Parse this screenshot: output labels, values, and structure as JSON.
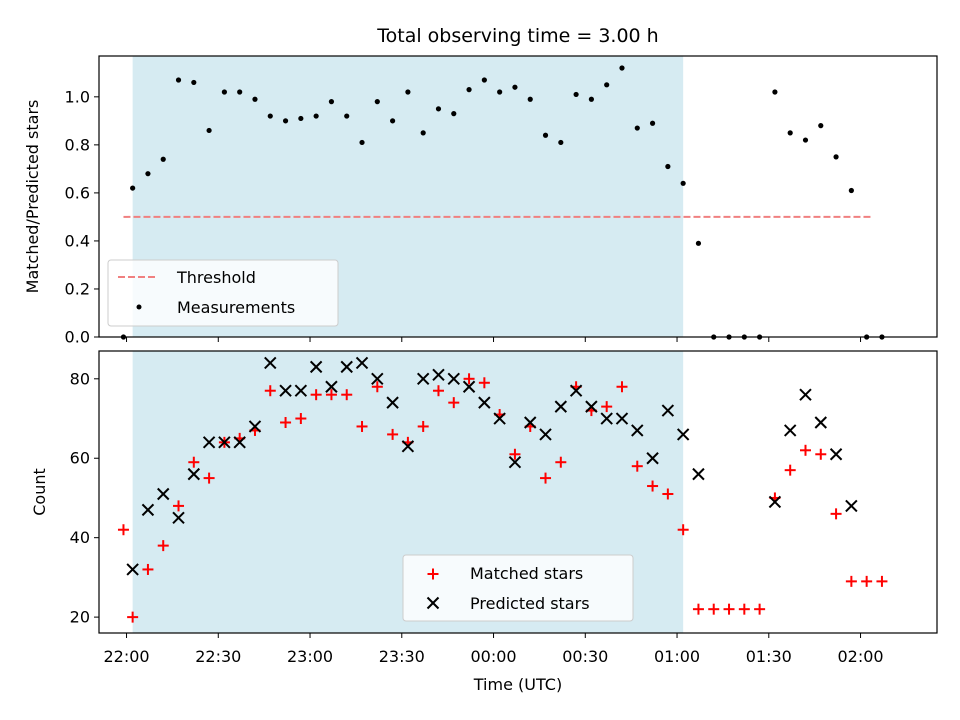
{
  "chart_data": [
    {
      "type": "scatter",
      "title": "Total observing time = 3.00 h",
      "xlabel": "",
      "ylabel": "Matched/Predicted stars",
      "ylim": [
        0,
        1.17
      ],
      "yticks": [
        "0.0",
        "0.2",
        "0.4",
        "0.6",
        "0.8",
        "1.0"
      ],
      "xlim": [
        "21:51",
        "02:25"
      ],
      "highlight_span": {
        "start": "22:02",
        "end": "01:02",
        "color": "#add8e6"
      },
      "colors": {
        "highlight": "#add8e6",
        "threshold": "#f08080",
        "measurements": "#000000"
      },
      "series": [
        {
          "name": "Threshold",
          "style": "dashed-line",
          "color": "#f08080",
          "x": [
            "21:59",
            "02:04"
          ],
          "y": [
            0.5,
            0.5
          ]
        },
        {
          "name": "Measurements",
          "style": "dot",
          "color": "#000000",
          "points": [
            [
              "21:59",
              0.0
            ],
            [
              "22:02",
              0.62
            ],
            [
              "22:07",
              0.68
            ],
            [
              "22:12",
              0.74
            ],
            [
              "22:17",
              1.07
            ],
            [
              "22:22",
              1.06
            ],
            [
              "22:27",
              0.86
            ],
            [
              "22:32",
              1.02
            ],
            [
              "22:37",
              1.02
            ],
            [
              "22:42",
              0.99
            ],
            [
              "22:47",
              0.92
            ],
            [
              "22:52",
              0.9
            ],
            [
              "22:57",
              0.91
            ],
            [
              "23:02",
              0.92
            ],
            [
              "23:07",
              0.98
            ],
            [
              "23:12",
              0.92
            ],
            [
              "23:17",
              0.81
            ],
            [
              "23:22",
              0.98
            ],
            [
              "23:27",
              0.9
            ],
            [
              "23:32",
              1.02
            ],
            [
              "23:37",
              0.85
            ],
            [
              "23:42",
              0.95
            ],
            [
              "23:47",
              0.93
            ],
            [
              "23:52",
              1.03
            ],
            [
              "23:57",
              1.07
            ],
            [
              "00:02",
              1.02
            ],
            [
              "00:07",
              1.04
            ],
            [
              "00:12",
              0.99
            ],
            [
              "00:17",
              0.84
            ],
            [
              "00:22",
              0.81
            ],
            [
              "00:27",
              1.01
            ],
            [
              "00:32",
              0.99
            ],
            [
              "00:37",
              1.05
            ],
            [
              "00:42",
              1.12
            ],
            [
              "00:47",
              0.87
            ],
            [
              "00:52",
              0.89
            ],
            [
              "00:57",
              0.71
            ],
            [
              "01:02",
              0.64
            ],
            [
              "01:07",
              0.39
            ],
            [
              "01:12",
              0.0
            ],
            [
              "01:17",
              0.0
            ],
            [
              "01:22",
              0.0
            ],
            [
              "01:27",
              0.0
            ],
            [
              "01:32",
              1.02
            ],
            [
              "01:37",
              0.85
            ],
            [
              "01:42",
              0.82
            ],
            [
              "01:47",
              0.88
            ],
            [
              "01:52",
              0.75
            ],
            [
              "01:57",
              0.61
            ],
            [
              "02:02",
              0.0
            ],
            [
              "02:07",
              0.0
            ]
          ]
        }
      ],
      "legend": {
        "placement": "lower-left",
        "entries": [
          "Threshold",
          "Measurements"
        ]
      }
    },
    {
      "type": "scatter",
      "title": "",
      "xlabel": "Time (UTC)",
      "ylabel": "Count",
      "ylim": [
        16,
        87
      ],
      "yticks": [
        "20",
        "40",
        "60",
        "80"
      ],
      "xlim": [
        "21:51",
        "02:25"
      ],
      "xticks": [
        "22:00",
        "22:30",
        "23:00",
        "23:30",
        "00:00",
        "00:30",
        "01:00",
        "01:30",
        "02:00"
      ],
      "highlight_span": {
        "start": "22:02",
        "end": "01:02",
        "color": "#add8e6"
      },
      "series": [
        {
          "name": "Matched stars",
          "style": "plus",
          "color": "#ff0000",
          "points": [
            [
              "21:59",
              42
            ],
            [
              "22:02",
              20
            ],
            [
              "22:07",
              32
            ],
            [
              "22:12",
              38
            ],
            [
              "22:17",
              48
            ],
            [
              "22:22",
              59
            ],
            [
              "22:27",
              55
            ],
            [
              "22:32",
              64
            ],
            [
              "22:37",
              65
            ],
            [
              "22:42",
              67
            ],
            [
              "22:47",
              77
            ],
            [
              "22:52",
              69
            ],
            [
              "22:57",
              70
            ],
            [
              "23:02",
              76
            ],
            [
              "23:07",
              76
            ],
            [
              "23:12",
              76
            ],
            [
              "23:17",
              68
            ],
            [
              "23:22",
              78
            ],
            [
              "23:27",
              66
            ],
            [
              "23:32",
              64
            ],
            [
              "23:37",
              68
            ],
            [
              "23:42",
              77
            ],
            [
              "23:47",
              74
            ],
            [
              "23:52",
              80
            ],
            [
              "23:57",
              79
            ],
            [
              "00:02",
              71
            ],
            [
              "00:07",
              61
            ],
            [
              "00:12",
              68
            ],
            [
              "00:17",
              55
            ],
            [
              "00:22",
              59
            ],
            [
              "00:27",
              78
            ],
            [
              "00:32",
              72
            ],
            [
              "00:37",
              73
            ],
            [
              "00:42",
              78
            ],
            [
              "00:47",
              58
            ],
            [
              "00:52",
              53
            ],
            [
              "00:57",
              51
            ],
            [
              "01:02",
              42
            ],
            [
              "01:07",
              22
            ],
            [
              "01:12",
              22
            ],
            [
              "01:17",
              22
            ],
            [
              "01:22",
              22
            ],
            [
              "01:27",
              22
            ],
            [
              "01:32",
              50
            ],
            [
              "01:37",
              57
            ],
            [
              "01:42",
              62
            ],
            [
              "01:47",
              61
            ],
            [
              "01:52",
              46
            ],
            [
              "01:57",
              29
            ],
            [
              "02:02",
              29
            ],
            [
              "02:07",
              29
            ]
          ]
        },
        {
          "name": "Predicted stars",
          "style": "x",
          "color": "#000000",
          "points": [
            [
              "22:02",
              32
            ],
            [
              "22:07",
              47
            ],
            [
              "22:12",
              51
            ],
            [
              "22:17",
              45
            ],
            [
              "22:22",
              56
            ],
            [
              "22:27",
              64
            ],
            [
              "22:32",
              64
            ],
            [
              "22:37",
              64
            ],
            [
              "22:42",
              68
            ],
            [
              "22:47",
              84
            ],
            [
              "22:52",
              77
            ],
            [
              "22:57",
              77
            ],
            [
              "23:02",
              83
            ],
            [
              "23:07",
              78
            ],
            [
              "23:12",
              83
            ],
            [
              "23:17",
              84
            ],
            [
              "23:22",
              80
            ],
            [
              "23:27",
              74
            ],
            [
              "23:32",
              63
            ],
            [
              "23:37",
              80
            ],
            [
              "23:42",
              81
            ],
            [
              "23:47",
              80
            ],
            [
              "23:52",
              78
            ],
            [
              "23:57",
              74
            ],
            [
              "00:02",
              70
            ],
            [
              "00:07",
              59
            ],
            [
              "00:12",
              69
            ],
            [
              "00:17",
              66
            ],
            [
              "00:22",
              73
            ],
            [
              "00:27",
              77
            ],
            [
              "00:32",
              73
            ],
            [
              "00:37",
              70
            ],
            [
              "00:42",
              70
            ],
            [
              "00:47",
              67
            ],
            [
              "00:52",
              60
            ],
            [
              "00:57",
              72
            ],
            [
              "01:02",
              66
            ],
            [
              "01:07",
              56
            ],
            [
              "01:32",
              49
            ],
            [
              "01:37",
              67
            ],
            [
              "01:42",
              76
            ],
            [
              "01:47",
              69
            ],
            [
              "01:52",
              61
            ],
            [
              "01:57",
              48
            ]
          ]
        }
      ],
      "legend": {
        "placement": "lower-center",
        "entries": [
          "Matched stars",
          "Predicted stars"
        ]
      }
    }
  ]
}
